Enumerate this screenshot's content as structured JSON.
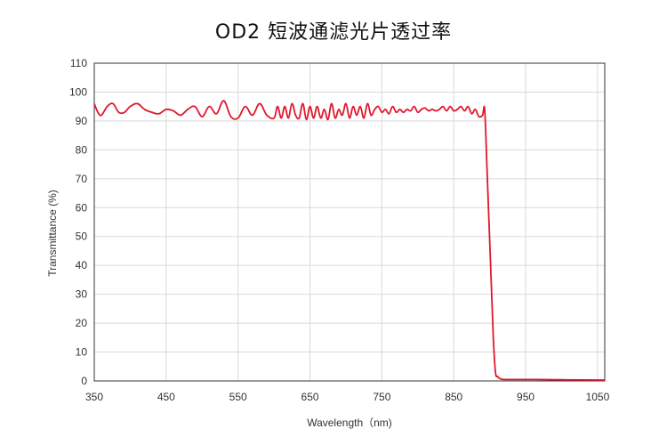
{
  "chart_data": {
    "type": "line",
    "title": "OD2 短波通滤光片透过率",
    "xlabel": "Wavelength（nm)",
    "ylabel": "Transmittance (%)",
    "xlim": [
      350,
      1060
    ],
    "ylim": [
      0,
      110
    ],
    "xticks": [
      350,
      450,
      550,
      650,
      750,
      850,
      950,
      1050
    ],
    "yticks": [
      0,
      10,
      20,
      30,
      40,
      50,
      60,
      70,
      80,
      90,
      100,
      110
    ],
    "grid": true,
    "line_color": "#e0182d",
    "series": [
      {
        "x": [
          350,
          355,
          360,
          368,
          376,
          384,
          392,
          400,
          410,
          420,
          430,
          440,
          450,
          460,
          470,
          480,
          490,
          500,
          510,
          520,
          530,
          540,
          550,
          560,
          570,
          580,
          590,
          600,
          605,
          610,
          615,
          620,
          625,
          630,
          635,
          640,
          645,
          650,
          655,
          660,
          665,
          670,
          675,
          680,
          685,
          690,
          695,
          700,
          705,
          710,
          715,
          720,
          725,
          730,
          735,
          740,
          745,
          750,
          755,
          760,
          765,
          770,
          775,
          780,
          785,
          790,
          795,
          800,
          805,
          810,
          815,
          820,
          825,
          830,
          835,
          840,
          845,
          850,
          855,
          860,
          865,
          870,
          875,
          880,
          885,
          890,
          893,
          896,
          899,
          902,
          905,
          908,
          911,
          914,
          917,
          920,
          925,
          930,
          940,
          960,
          1000,
          1060
        ],
        "y": [
          96,
          93,
          92,
          95,
          96,
          93,
          93,
          95,
          96,
          94,
          93,
          92.5,
          94,
          93.5,
          92,
          94,
          95,
          91.5,
          95,
          92.5,
          97,
          91.5,
          91,
          95,
          92,
          96,
          92,
          91,
          95,
          91,
          95,
          91,
          96,
          92,
          91,
          96,
          90.5,
          95,
          91,
          95,
          91,
          94,
          90.5,
          96,
          91,
          94,
          92,
          96,
          91,
          95,
          92,
          95,
          91,
          96,
          92,
          94,
          95,
          93,
          94,
          92.5,
          95,
          93,
          94,
          93,
          94,
          93.5,
          95,
          93,
          94,
          94.5,
          93.5,
          94,
          93.5,
          94,
          95,
          93.5,
          95,
          93.5,
          94,
          95,
          93.5,
          95,
          92.5,
          94,
          91.5,
          92,
          94,
          75,
          55,
          35,
          15,
          3,
          1.5,
          0.8,
          0.6,
          0.5,
          0.5,
          0.5,
          0.5,
          0.5,
          0.4,
          0.3
        ]
      }
    ]
  }
}
